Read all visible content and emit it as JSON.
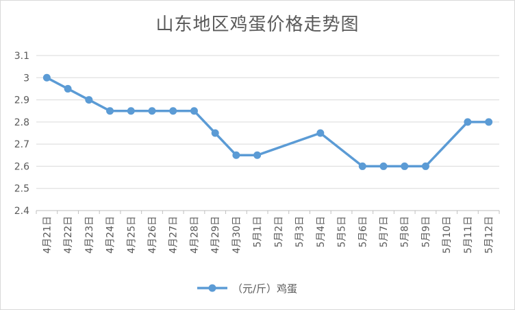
{
  "chart_data": {
    "type": "line",
    "title": "山东地区鸡蛋价格走势图",
    "xlabel": "",
    "ylabel": "",
    "categories": [
      "4月21日",
      "4月22日",
      "4月23日",
      "4月24日",
      "4月25日",
      "4月26日",
      "4月27日",
      "4月28日",
      "4月29日",
      "4月30日",
      "5月1日",
      "5月2日",
      "5月3日",
      "5月4日",
      "5月5日",
      "5月6日",
      "5月7日",
      "5月8日",
      "5月9日",
      "5月10日",
      "5月11日",
      "5月12日"
    ],
    "series": [
      {
        "name": "（元/斤）鸡蛋",
        "color": "#5b9bd5",
        "values": [
          3.0,
          2.95,
          2.9,
          2.85,
          2.85,
          2.85,
          2.85,
          2.85,
          2.75,
          2.65,
          2.65,
          null,
          null,
          2.75,
          null,
          2.6,
          2.6,
          2.6,
          2.6,
          null,
          2.8,
          2.8
        ]
      }
    ],
    "ylim": [
      2.4,
      3.1
    ],
    "yticks": [
      "2.4",
      "2.5",
      "2.6",
      "2.7",
      "2.8",
      "2.9",
      "3",
      "3.1"
    ],
    "grid": true,
    "legend_position": "bottom"
  }
}
